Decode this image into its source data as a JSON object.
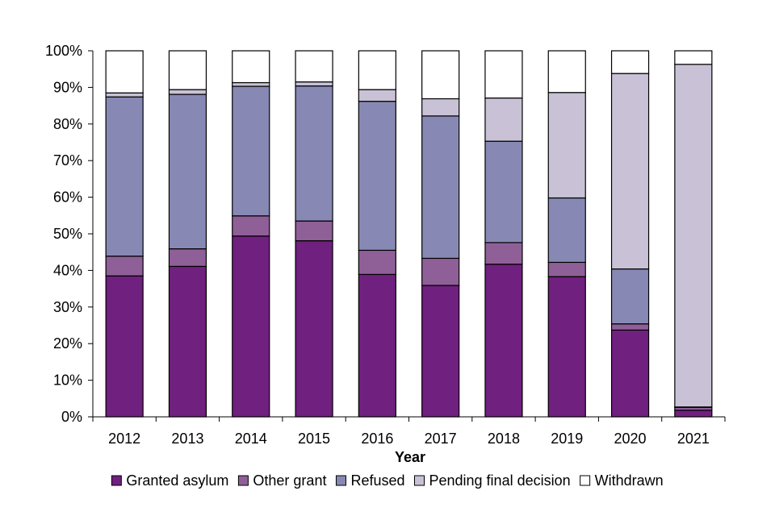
{
  "chart_data": {
    "type": "bar",
    "stacked": true,
    "categories": [
      "2012",
      "2013",
      "2014",
      "2015",
      "2016",
      "2017",
      "2018",
      "2019",
      "2020",
      "2021"
    ],
    "series": [
      {
        "name": "Granted asylum",
        "color": "#70207e",
        "values": [
          38.5,
          41.1,
          49.4,
          48.1,
          38.9,
          35.9,
          41.7,
          38.3,
          23.7,
          1.8
        ]
      },
      {
        "name": "Other grant",
        "color": "#8f5f98",
        "values": [
          5.4,
          4.8,
          5.5,
          5.4,
          6.6,
          7.4,
          5.9,
          3.9,
          1.7,
          0.8
        ]
      },
      {
        "name": "Refused",
        "color": "#8789b4",
        "values": [
          43.5,
          42.2,
          35.4,
          36.9,
          40.7,
          38.9,
          27.7,
          17.6,
          15.0,
          0.1
        ]
      },
      {
        "name": "Pending final decision",
        "color": "#c9c2d6",
        "values": [
          1.1,
          1.3,
          1.0,
          1.1,
          3.2,
          4.7,
          11.8,
          28.8,
          53.4,
          93.6
        ]
      },
      {
        "name": "Withdrawn",
        "color": "#ffffff",
        "values": [
          11.5,
          10.6,
          8.7,
          8.5,
          10.6,
          13.1,
          12.9,
          11.4,
          6.2,
          3.7
        ]
      }
    ],
    "xlabel": "Year",
    "ylabel": "",
    "ylim": [
      0,
      100
    ],
    "yticks": [
      "0%",
      "10%",
      "20%",
      "30%",
      "40%",
      "50%",
      "60%",
      "70%",
      "80%",
      "90%",
      "100%"
    ],
    "grid": false,
    "legend_position": "bottom"
  }
}
